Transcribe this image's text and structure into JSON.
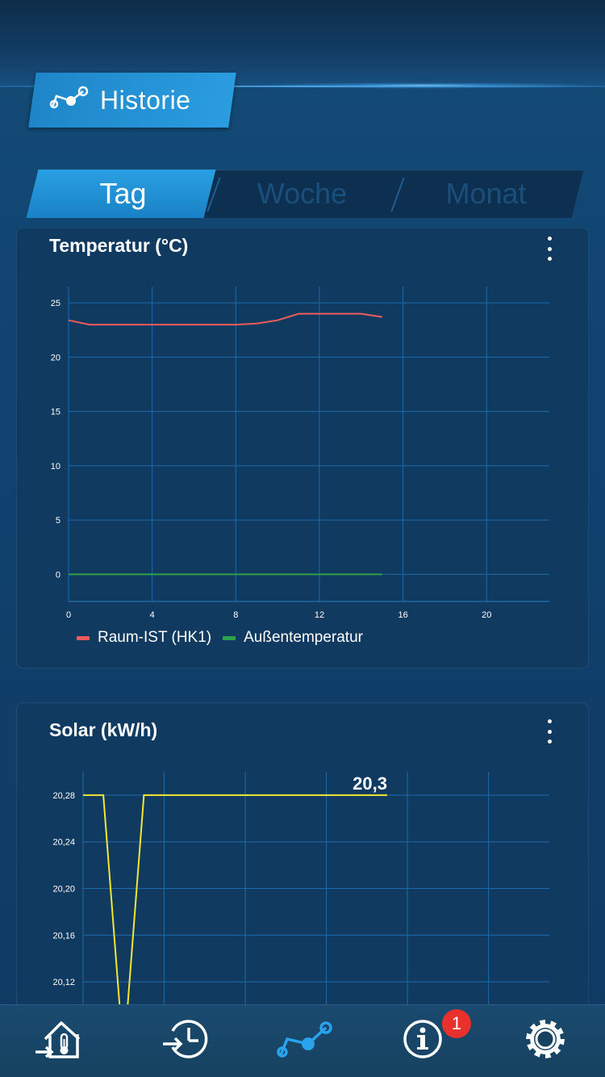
{
  "header": {
    "title": "Historie",
    "icon": "history-chart-icon"
  },
  "tabs": [
    {
      "label": "Tag",
      "active": true
    },
    {
      "label": "Woche",
      "active": false
    },
    {
      "label": "Monat",
      "active": false
    }
  ],
  "temperature_card": {
    "title": "Temperatur (°C)",
    "legend": [
      {
        "label": "Raum-IST (HK1)",
        "color": "#f05a5a"
      },
      {
        "label": "Außentemperatur",
        "color": "#2ea24a"
      }
    ]
  },
  "solar_card": {
    "title": "Solar (kW/h)",
    "value_label": "20,3"
  },
  "bottom_nav": {
    "items": [
      {
        "name": "house-thermometer-icon"
      },
      {
        "name": "clock-history-icon"
      },
      {
        "name": "chart-icon",
        "active": true
      },
      {
        "name": "info-icon"
      },
      {
        "name": "settings-gear-icon"
      }
    ],
    "info_badge": "1",
    "active_color": "#2aa3ec"
  },
  "chart_data": [
    {
      "type": "line",
      "title": "Temperatur (°C)",
      "xlim": [
        0,
        23
      ],
      "ylim": [
        -2.5,
        26.5
      ],
      "x_ticks": [
        "0",
        "4",
        "8",
        "12",
        "16",
        "20"
      ],
      "y_ticks": [
        "0",
        "5",
        "10",
        "15",
        "20",
        "25"
      ],
      "grid": true,
      "legend": "bottom-left",
      "series": [
        {
          "name": "Raum-IST (HK1)",
          "color": "#f05a5a",
          "x": [
            0,
            1,
            2,
            3,
            4,
            5,
            6,
            7,
            8,
            9,
            10,
            11,
            12,
            13,
            14,
            15
          ],
          "y": [
            23.4,
            23,
            23,
            23,
            23,
            23,
            23,
            23,
            23,
            23.1,
            23.4,
            24,
            24,
            24,
            24,
            23.7
          ]
        },
        {
          "name": "Außentemperatur",
          "color": "#2ea24a",
          "x": [
            0,
            15
          ],
          "y": [
            0,
            0
          ]
        }
      ]
    },
    {
      "type": "line",
      "title": "Solar (kW/h)",
      "xlim": [
        0,
        23
      ],
      "ylim": [
        20.1,
        20.3
      ],
      "y_ticks": [
        "20,12",
        "20,16",
        "20,20",
        "20,24",
        "20,28"
      ],
      "grid": true,
      "annotations": [
        "20,3"
      ],
      "series": [
        {
          "color": "#f2e832",
          "x": [
            0,
            1,
            1.8,
            2.2,
            3,
            6,
            9,
            12,
            15
          ],
          "y": [
            20.28,
            20.28,
            20.1,
            20.1,
            20.28,
            20.28,
            20.28,
            20.28,
            20.28
          ]
        }
      ]
    }
  ]
}
